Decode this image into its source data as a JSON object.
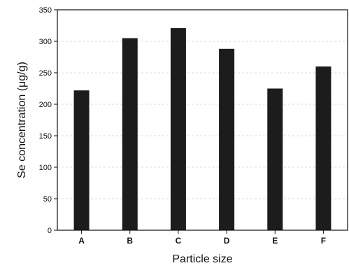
{
  "chart_data": {
    "type": "bar",
    "categories": [
      "A",
      "B",
      "C",
      "D",
      "E",
      "F"
    ],
    "values": [
      222,
      305,
      321,
      288,
      225,
      260
    ],
    "xlabel": "Particle size",
    "ylabel": "Se concentration (μg/g)",
    "ylim": [
      0,
      350
    ],
    "yticks": [
      0,
      50,
      100,
      150,
      200,
      250,
      300,
      350
    ],
    "grid": "horizontal dashed",
    "bar_color": "#1c1c1c"
  }
}
